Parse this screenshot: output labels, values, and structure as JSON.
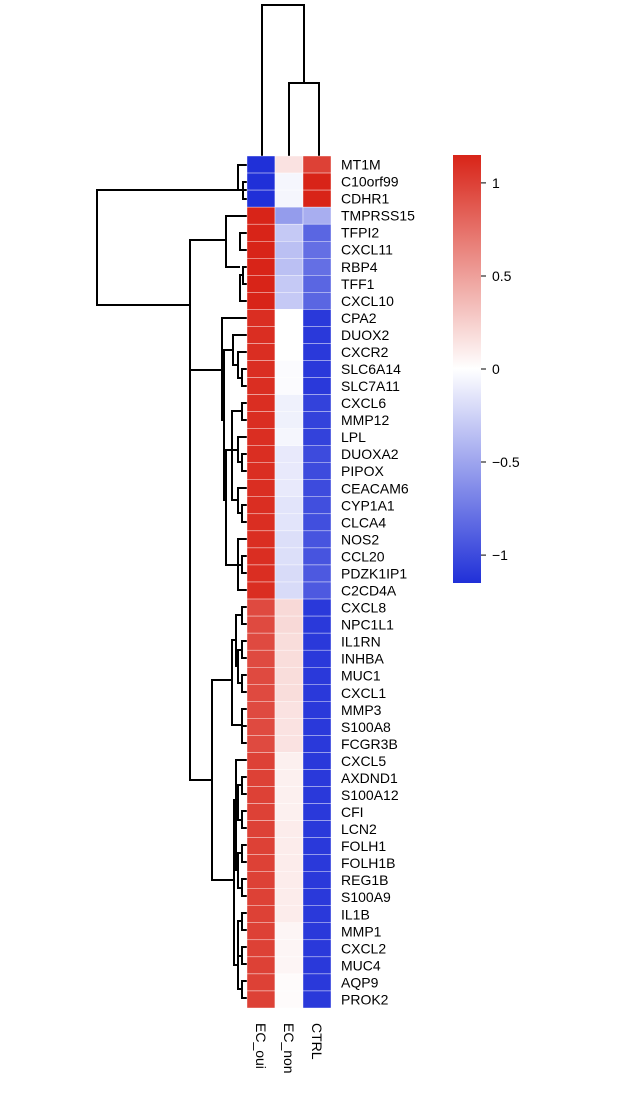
{
  "chart_data": {
    "type": "heatmap",
    "columns": [
      "EC_oui",
      "EC_non",
      "CTRL"
    ],
    "rows": [
      "MT1M",
      "C10orf99",
      "CDHR1",
      "TMPRSS15",
      "TFPI2",
      "CXCL11",
      "RBP4",
      "TFF1",
      "CXCL10",
      "CPA2",
      "DUOX2",
      "CXCR2",
      "SLC6A14",
      "SLC7A11",
      "CXCL6",
      "MMP12",
      "LPL",
      "DUOXA2",
      "PIPOX",
      "CEACAM6",
      "CYP1A1",
      "CLCA4",
      "NOS2",
      "CCL20",
      "PDZK1IP1",
      "C2CD4A",
      "CXCL8",
      "NPC1L1",
      "IL1RN",
      "INHBA",
      "MUC1",
      "CXCL1",
      "MMP3",
      "S100A8",
      "FCGR3B",
      "CXCL5",
      "AXDND1",
      "S100A12",
      "CFI",
      "LCN2",
      "FOLH1",
      "FOLH1B",
      "REG1B",
      "S100A9",
      "IL1B",
      "MMP1",
      "CXCL2",
      "MUC4",
      "AQP9",
      "PROK2"
    ],
    "values": [
      [
        -1.15,
        0.15,
        1.0
      ],
      [
        -1.15,
        -0.05,
        1.15
      ],
      [
        -1.15,
        -0.05,
        1.15
      ],
      [
        1.15,
        -0.55,
        -0.45
      ],
      [
        1.15,
        -0.3,
        -0.85
      ],
      [
        1.15,
        -0.35,
        -0.8
      ],
      [
        1.15,
        -0.35,
        -0.8
      ],
      [
        1.15,
        -0.3,
        -0.85
      ],
      [
        1.15,
        -0.3,
        -0.85
      ],
      [
        1.1,
        0.0,
        -1.1
      ],
      [
        1.1,
        0.0,
        -1.1
      ],
      [
        1.1,
        0.0,
        -1.1
      ],
      [
        1.1,
        -0.02,
        -1.1
      ],
      [
        1.1,
        -0.02,
        -1.1
      ],
      [
        1.1,
        -0.08,
        -1.05
      ],
      [
        1.1,
        -0.08,
        -1.05
      ],
      [
        1.1,
        -0.05,
        -1.05
      ],
      [
        1.1,
        -0.12,
        -1.0
      ],
      [
        1.1,
        -0.12,
        -1.0
      ],
      [
        1.1,
        -0.12,
        -1.0
      ],
      [
        1.1,
        -0.15,
        -0.98
      ],
      [
        1.1,
        -0.15,
        -0.98
      ],
      [
        1.1,
        -0.18,
        -0.95
      ],
      [
        1.1,
        -0.18,
        -0.95
      ],
      [
        1.1,
        -0.2,
        -0.92
      ],
      [
        1.1,
        -0.2,
        -0.92
      ],
      [
        0.95,
        0.2,
        -1.1
      ],
      [
        0.95,
        0.2,
        -1.1
      ],
      [
        0.95,
        0.18,
        -1.1
      ],
      [
        0.95,
        0.18,
        -1.1
      ],
      [
        0.95,
        0.18,
        -1.1
      ],
      [
        0.95,
        0.18,
        -1.1
      ],
      [
        0.95,
        0.15,
        -1.1
      ],
      [
        0.95,
        0.15,
        -1.1
      ],
      [
        0.95,
        0.15,
        -1.1
      ],
      [
        1.0,
        0.08,
        -1.1
      ],
      [
        1.0,
        0.08,
        -1.1
      ],
      [
        1.0,
        0.08,
        -1.1
      ],
      [
        1.0,
        0.08,
        -1.1
      ],
      [
        1.0,
        0.1,
        -1.1
      ],
      [
        1.0,
        0.1,
        -1.1
      ],
      [
        1.0,
        0.1,
        -1.1
      ],
      [
        1.0,
        0.1,
        -1.1
      ],
      [
        1.0,
        0.1,
        -1.1
      ],
      [
        1.0,
        0.1,
        -1.1
      ],
      [
        1.0,
        0.05,
        -1.1
      ],
      [
        1.0,
        0.05,
        -1.1
      ],
      [
        1.0,
        0.05,
        -1.1
      ],
      [
        1.0,
        0.02,
        -1.1
      ],
      [
        1.0,
        0.02,
        -1.1
      ]
    ],
    "legend": {
      "ticks": [
        1,
        0.5,
        0,
        -0.5,
        -1
      ],
      "tick_labels": [
        "1",
        "0.5",
        "0",
        "−0.5",
        "−1"
      ],
      "range": [
        -1.15,
        1.15
      ]
    },
    "colors": {
      "low": "#2030d8",
      "mid": "#ffffff",
      "high": "#d82418"
    },
    "title": "",
    "xlabel": "",
    "ylabel": ""
  }
}
